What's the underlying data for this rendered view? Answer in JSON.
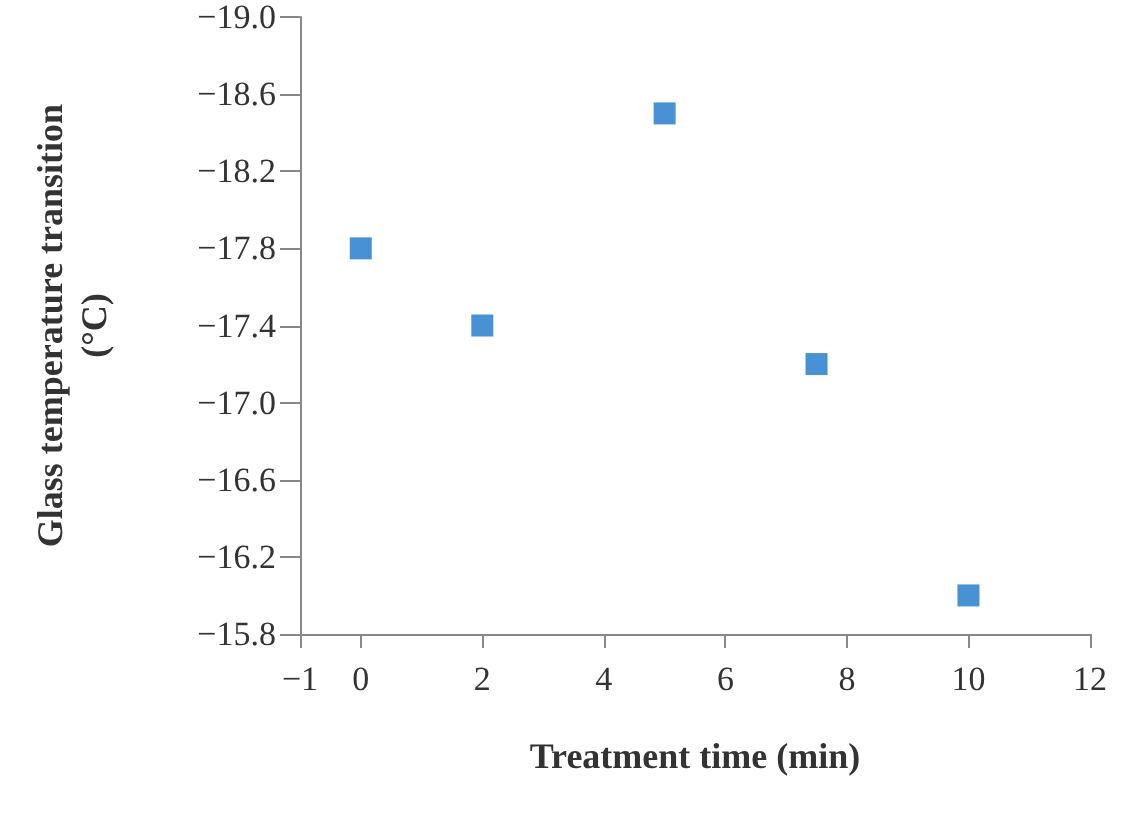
{
  "chart_data": {
    "type": "scatter",
    "xlabel": "Treatment time (min)",
    "ylabel": "Glass temperature transition\n(°C)",
    "x": [
      0,
      2,
      5,
      7.5,
      10
    ],
    "values": [
      -17.8,
      -17.4,
      -18.5,
      -17.2,
      -16.0
    ],
    "color": "#1a75c9",
    "marker": "square",
    "xlim": [
      -1,
      12
    ],
    "xticks": [
      {
        "value": -1,
        "label": "−1"
      },
      0,
      2,
      4,
      6,
      8,
      10,
      12
    ],
    "ylim": [
      -15.8,
      -19.0
    ],
    "yticks": [
      {
        "value": -19,
        "label": "−19.0"
      },
      {
        "value": -18.6,
        "label": "−18.6"
      },
      {
        "value": -18.2,
        "label": "−18.2"
      },
      {
        "value": -17.8,
        "label": "−17.8"
      },
      {
        "value": -17.4,
        "label": "−17.4"
      },
      {
        "value": -17,
        "label": "−17.0"
      },
      {
        "value": -16.6,
        "label": "−16.6"
      },
      {
        "value": -16.2,
        "label": "−16.2"
      },
      {
        "value": -15.8,
        "label": "−15.8"
      }
    ],
    "grid": false
  }
}
